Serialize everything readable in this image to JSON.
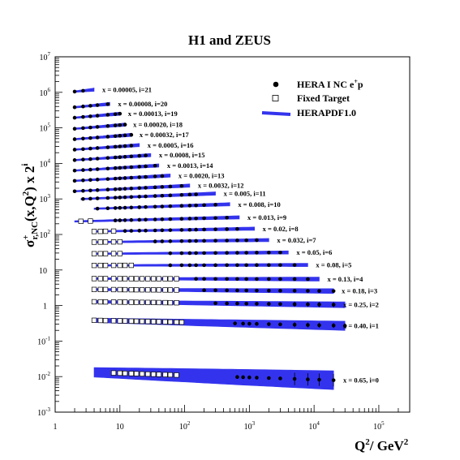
{
  "chart_data": {
    "type": "scatter",
    "title": "H1 and ZEUS",
    "xscale": "log",
    "yscale": "log",
    "xlim": [
      1,
      300000
    ],
    "ylim": [
      0.001,
      10000000
    ],
    "x_ticks": [
      {
        "value": 1,
        "label": "1",
        "sup": ""
      },
      {
        "value": 10,
        "label": "10",
        "sup": ""
      },
      {
        "value": 100,
        "label": "10",
        "sup": "2"
      },
      {
        "value": 1000,
        "label": "10",
        "sup": "3"
      },
      {
        "value": 10000,
        "label": "10",
        "sup": "4"
      },
      {
        "value": 100000,
        "label": "10",
        "sup": "5"
      }
    ],
    "y_ticks": [
      {
        "value": 0.001,
        "label": "10",
        "sup": "-3"
      },
      {
        "value": 0.01,
        "label": "10",
        "sup": "-2"
      },
      {
        "value": 0.1,
        "label": "10",
        "sup": "-1"
      },
      {
        "value": 1,
        "label": "1",
        "sup": ""
      },
      {
        "value": 10,
        "label": "10",
        "sup": ""
      },
      {
        "value": 100,
        "label": "10",
        "sup": "2"
      },
      {
        "value": 1000,
        "label": "10",
        "sup": "3"
      },
      {
        "value": 10000,
        "label": "10",
        "sup": "4"
      },
      {
        "value": 100000,
        "label": "10",
        "sup": "5"
      },
      {
        "value": 1000000,
        "label": "10",
        "sup": "6"
      },
      {
        "value": 10000000,
        "label": "10",
        "sup": "7"
      }
    ],
    "xlabel": {
      "q": "Q",
      "sup": "2",
      "rest": "/ GeV",
      "sup2": "2"
    },
    "ylabel": {
      "sigma": "σ",
      "sup": "+",
      "sub": "r,NC",
      "mid": "(x,Q",
      "sup2": "2",
      "rest": ") x 2",
      "sup3": "i"
    },
    "legend": {
      "position": "top-right",
      "entries": [
        {
          "label": "HERA I NC e",
          "sup": "+",
          "after": "p",
          "marker": "filled-circle"
        },
        {
          "label": "Fixed Target",
          "sup": "",
          "after": "",
          "marker": "open-square"
        },
        {
          "label": "HERAPDF1.0",
          "sup": "",
          "after": "",
          "marker": "band"
        }
      ]
    },
    "colors": {
      "hera": "#000000",
      "fixed": "#000000",
      "band": "#3333ee"
    },
    "bins": [
      {
        "label": "x = 0.65, i=0",
        "i": 0,
        "y0": 0.0125,
        "slope": -0.06,
        "hera_q2": [
          650,
          800,
          1000,
          1300,
          2000,
          3000,
          5000,
          8000,
          12000,
          20000
        ],
        "fixed_q2": [
          8,
          10,
          12,
          15,
          18,
          22,
          27,
          33,
          40,
          50,
          60,
          75
        ],
        "band_q2": [
          4,
          20000
        ],
        "band_width": 1.6
      },
      {
        "label": "x = 0.40, i=1",
        "i": 1,
        "y0": 0.37,
        "slope": -0.04,
        "hera_q2": [
          600,
          800,
          1000,
          1300,
          2000,
          3000,
          5000,
          8000,
          12000,
          20000,
          30000
        ],
        "fixed_q2": [
          4,
          5,
          6,
          8,
          10,
          12,
          15,
          18,
          22,
          27,
          33,
          40,
          50,
          60,
          75,
          90
        ],
        "band_q2": [
          4,
          30000
        ],
        "band_width": 1.25
      },
      {
        "label": "x = 0.25, i=2",
        "i": 2,
        "y0": 1.25,
        "slope": -0.022,
        "hera_q2": [
          300,
          450,
          650,
          900,
          1300,
          2000,
          3000,
          5000,
          8000,
          12000,
          20000
        ],
        "fixed_q2": [
          4,
          5,
          6,
          8,
          10,
          12,
          15,
          18,
          22,
          27,
          33,
          40,
          50,
          60,
          75
        ],
        "band_q2": [
          4,
          30000
        ],
        "band_width": 1.15
      },
      {
        "label": "x = 0.18, i=3",
        "i": 3,
        "y0": 2.8,
        "slope": -0.012,
        "hera_q2": [
          200,
          300,
          450,
          650,
          900,
          1300,
          2000,
          3000,
          5000,
          8000,
          12000,
          20000
        ],
        "fixed_q2": [
          4,
          5,
          6,
          8,
          10,
          12,
          15,
          18,
          22,
          27,
          33,
          40,
          50,
          60,
          75
        ],
        "band_q2": [
          4,
          20000
        ],
        "band_width": 1.12
      },
      {
        "label": "x = 0.13, i=4",
        "i": 4,
        "y0": 5.7,
        "slope": -0.004,
        "hera_q2": [
          150,
          200,
          300,
          450,
          650,
          900,
          1300,
          2000,
          3000,
          5000,
          8000
        ],
        "fixed_q2": [
          4,
          5,
          6,
          8,
          10,
          12,
          15,
          18,
          22,
          27,
          33,
          40,
          50,
          60,
          75
        ],
        "band_q2": [
          4,
          12000
        ],
        "band_width": 1.1
      },
      {
        "label": "x = 0.08, i=5",
        "i": 5,
        "y0": 13.5,
        "slope": 0.004,
        "hera_q2": [
          60,
          90,
          120,
          150,
          200,
          300,
          450,
          650,
          900,
          1300,
          2000,
          3000,
          5000
        ],
        "fixed_q2": [
          4,
          5,
          6,
          8,
          10,
          12,
          15
        ],
        "band_q2": [
          4,
          8000
        ],
        "band_width": 1.08
      },
      {
        "label": "x = 0.05, i=6",
        "i": 6,
        "y0": 29,
        "slope": 0.012,
        "hera_q2": [
          60,
          90,
          120,
          150,
          200,
          300,
          450,
          650,
          900,
          1300,
          2000,
          3000
        ],
        "fixed_q2": [
          4,
          5,
          6,
          8,
          10
        ],
        "band_q2": [
          4,
          4000
        ],
        "band_width": 1.08
      },
      {
        "label": "x = 0.032, i=7",
        "i": 7,
        "y0": 62,
        "slope": 0.022,
        "hera_q2": [
          35,
          45,
          60,
          90,
          120,
          150,
          200,
          300,
          450,
          650,
          900,
          1300
        ],
        "fixed_q2": [
          4,
          5,
          6,
          8,
          10
        ],
        "band_q2": [
          4,
          2000
        ],
        "band_width": 1.08
      },
      {
        "label": "x = 0.02, i=8",
        "i": 8,
        "y0": 125,
        "slope": 0.032,
        "hera_q2": [
          12,
          15,
          20,
          25,
          35,
          45,
          60,
          90,
          120,
          150,
          200,
          300,
          450,
          650
        ],
        "fixed_q2": [
          4,
          5,
          6,
          8
        ],
        "band_q2": [
          4,
          1200
        ],
        "band_width": 1.08
      },
      {
        "label": "x = 0.013, i=9",
        "i": 9,
        "y0": 250,
        "slope": 0.045,
        "hera_q2": [
          8.5,
          10,
          12,
          15,
          20,
          25,
          35,
          45,
          60,
          90,
          120,
          150,
          200,
          300,
          450
        ],
        "fixed_q2": [
          2.5,
          3.5
        ],
        "band_q2": [
          2,
          700
        ],
        "band_width": 1.08
      },
      {
        "label": "x = 0.008, i=10",
        "i": 10,
        "y0": 560,
        "slope": 0.06,
        "hera_q2": [
          4.5,
          6.5,
          8.5,
          10,
          12,
          15,
          20,
          25,
          35,
          45,
          60,
          90,
          120,
          150,
          200,
          300
        ],
        "fixed_q2": [],
        "band_q2": [
          4,
          500
        ],
        "band_width": 1.08
      },
      {
        "label": "x = 0.005, i=11",
        "i": 11,
        "y0": 1100,
        "slope": 0.075,
        "hera_q2": [
          2.7,
          3.5,
          4.5,
          6.5,
          8.5,
          10,
          12,
          15,
          20,
          25,
          35,
          45,
          60,
          90,
          120,
          150
        ],
        "fixed_q2": [],
        "band_q2": [
          2.5,
          300
        ],
        "band_width": 1.08
      },
      {
        "label": "x = 0.0032, i=12",
        "i": 12,
        "y0": 1900,
        "slope": 0.09,
        "hera_q2": [
          2,
          2.7,
          3.5,
          4.5,
          6.5,
          8.5,
          10,
          12,
          15,
          20,
          25,
          35,
          45,
          60,
          90
        ],
        "fixed_q2": [],
        "band_q2": [
          2,
          120
        ],
        "band_width": 1.08
      },
      {
        "label": "x = 0.0020, i=13",
        "i": 13,
        "y0": 3800,
        "slope": 0.1,
        "hera_q2": [
          2,
          2.7,
          3.5,
          4.5,
          6.5,
          8.5,
          10,
          12,
          15,
          20,
          25,
          35,
          45
        ],
        "fixed_q2": [],
        "band_q2": [
          2,
          60
        ],
        "band_width": 1.08
      },
      {
        "label": "x = 0.0013, i=14",
        "i": 14,
        "y0": 7500,
        "slope": 0.11,
        "hera_q2": [
          2,
          2.7,
          3.5,
          4.5,
          6.5,
          8.5,
          10,
          12,
          15,
          20,
          25,
          35
        ],
        "fixed_q2": [],
        "band_q2": [
          2,
          40
        ],
        "band_width": 1.08
      },
      {
        "label": "x = 0.0008, i=15",
        "i": 15,
        "y0": 15000,
        "slope": 0.12,
        "hera_q2": [
          2,
          2.7,
          3.5,
          4.5,
          6.5,
          8.5,
          10,
          12,
          15,
          20,
          25
        ],
        "fixed_q2": [],
        "band_q2": [
          2,
          30
        ],
        "band_width": 1.08
      },
      {
        "label": "x = 0.0005, i=16",
        "i": 16,
        "y0": 30000,
        "slope": 0.13,
        "hera_q2": [
          2,
          2.7,
          3.5,
          4.5,
          6.5,
          8.5,
          10,
          12,
          15
        ],
        "fixed_q2": [],
        "band_q2": [
          2,
          20
        ],
        "band_width": 1.08
      },
      {
        "label": "x = 0.00032, i=17",
        "i": 17,
        "y0": 60000,
        "slope": 0.14,
        "hera_q2": [
          2,
          2.7,
          3.5,
          4.5,
          6.5,
          8.5,
          10,
          12,
          15
        ],
        "fixed_q2": [],
        "band_q2": [
          2,
          15
        ],
        "band_width": 1.08
      },
      {
        "label": "x = 0.00020, i=18",
        "i": 18,
        "y0": 120000,
        "slope": 0.15,
        "hera_q2": [
          2,
          2.7,
          3.5,
          4.5,
          6.5,
          8.5,
          10,
          12
        ],
        "fixed_q2": [],
        "band_q2": [
          2,
          12
        ],
        "band_width": 1.08
      },
      {
        "label": "x = 0.00013, i=19",
        "i": 19,
        "y0": 250000,
        "slope": 0.16,
        "hera_q2": [
          2,
          2.7,
          3.5,
          4.5,
          6.5,
          8.5,
          10
        ],
        "fixed_q2": [],
        "band_q2": [
          2,
          10
        ],
        "band_width": 1.08
      },
      {
        "label": "x = 0.00008, i=20",
        "i": 20,
        "y0": 500000,
        "slope": 0.17,
        "hera_q2": [
          2,
          2.7,
          3.5,
          4.5,
          6.5
        ],
        "fixed_q2": [],
        "band_q2": [
          2,
          7
        ],
        "band_width": 1.08
      },
      {
        "label": "x = 0.00005, i=21",
        "i": 21,
        "y0": 1400000,
        "slope": 0.18,
        "hera_q2": [
          2,
          2.7
        ],
        "fixed_q2": [],
        "band_q2": [
          2,
          4
        ],
        "band_width": 1.08
      }
    ]
  }
}
